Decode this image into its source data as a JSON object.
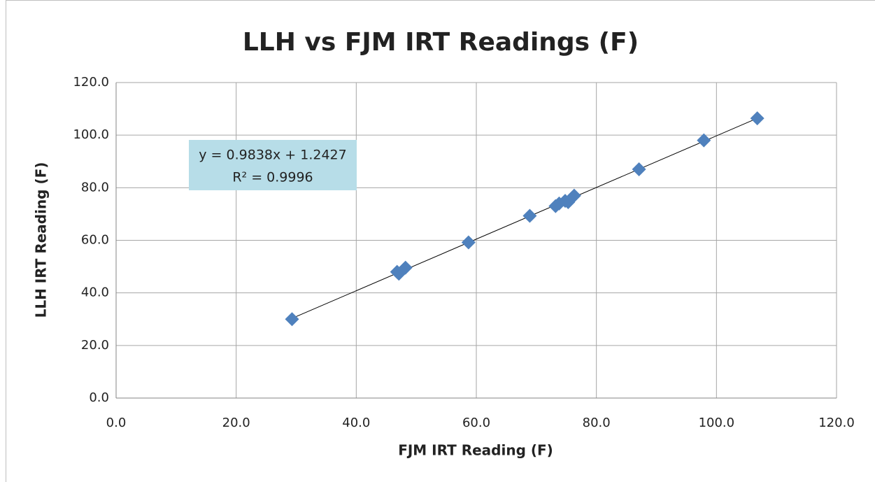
{
  "chart_data": {
    "type": "scatter",
    "title": "LLH vs FJM IRT Readings (F)",
    "xlabel": "FJM IRT Reading (F)",
    "ylabel": "LLH IRT Reading (F)",
    "annotation": [
      "y = 0.9838x + 1.2427",
      "R² = 0.9996"
    ],
    "trendline": true,
    "grid": true,
    "series": [
      {
        "color": "#4f81bd",
        "x": [
          29.3,
          46.8,
          47.1,
          48.2,
          58.7,
          68.9,
          73.2,
          73.8,
          74.8,
          75.3,
          76.3,
          87.1,
          97.9,
          106.8
        ],
        "values": [
          30.0,
          48.0,
          47.3,
          49.6,
          59.2,
          69.3,
          73.0,
          74.0,
          75.0,
          74.5,
          77.0,
          87.0,
          98.0,
          106.4
        ]
      }
    ],
    "xlim": [
      0,
      120
    ],
    "xticks": [
      {
        "value": 0,
        "label": "0.0"
      },
      {
        "value": 20,
        "label": "20.0"
      },
      {
        "value": 40,
        "label": "40.0"
      },
      {
        "value": 60,
        "label": "60.0"
      },
      {
        "value": 80,
        "label": "80.0"
      },
      {
        "value": 100,
        "label": "100.0"
      },
      {
        "value": 120,
        "label": "120.0"
      }
    ],
    "ylim": [
      0,
      120
    ],
    "yticks": [
      {
        "value": 0,
        "label": "0.0"
      },
      {
        "value": 20,
        "label": "20.0"
      },
      {
        "value": 40,
        "label": "40.0"
      },
      {
        "value": 60,
        "label": "60.0"
      },
      {
        "value": 80,
        "label": "80.0"
      },
      {
        "value": 100,
        "label": "100.0"
      },
      {
        "value": 120,
        "label": "120.0"
      }
    ]
  }
}
